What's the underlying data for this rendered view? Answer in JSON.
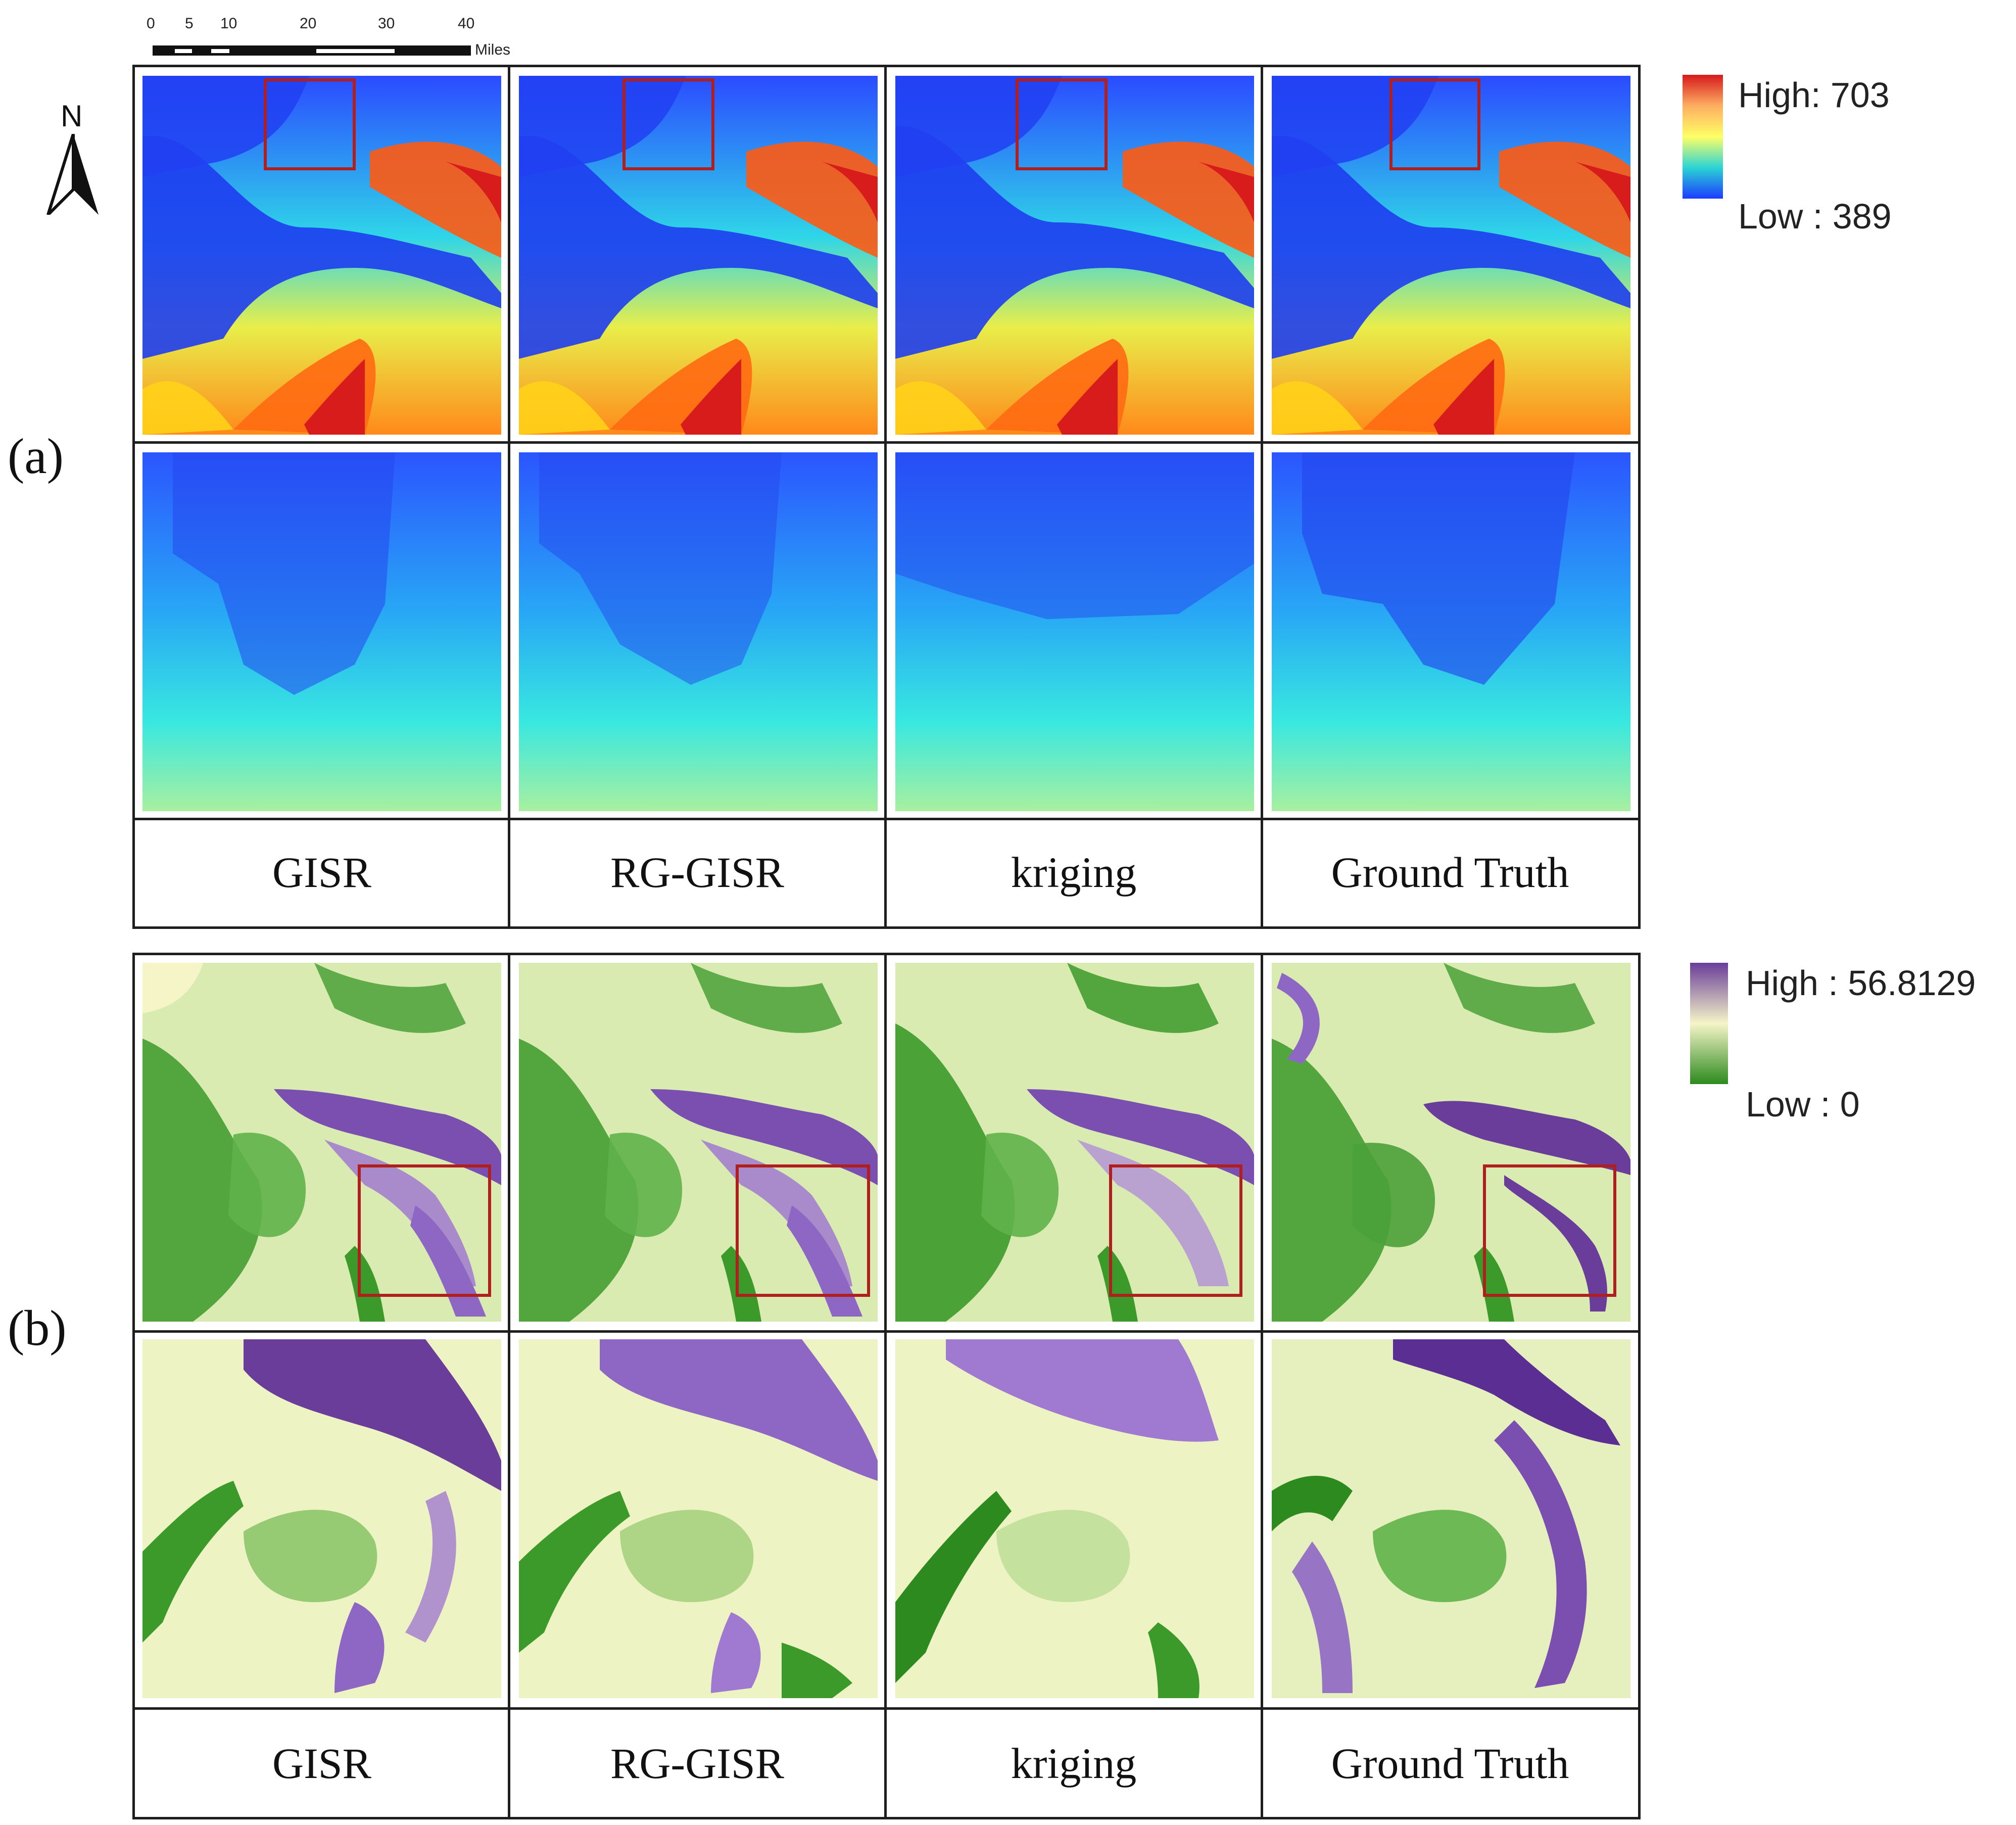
{
  "figure": {
    "panel_a": {
      "label": "(a)",
      "columns": [
        "GISR",
        "RG-GISR",
        "kriging",
        "Ground Truth"
      ],
      "legend": {
        "high": "High: 703",
        "low": "Low : 389",
        "colors": [
          "#d7191c",
          "#fdae61",
          "#ffff66",
          "#2bd4d4",
          "#1c3cff"
        ]
      }
    },
    "panel_b": {
      "label": "(b)",
      "columns": [
        "GISR",
        "RG-GISR",
        "kriging",
        "Ground Truth"
      ],
      "legend": {
        "high": "High : 56.8129",
        "low": "Low : 0",
        "colors": [
          "#6a3d9a",
          "#f5f5c8",
          "#2d8a1e"
        ]
      }
    },
    "scalebar": {
      "ticks": [
        "0",
        "5",
        "10",
        "20",
        "30",
        "40"
      ],
      "unit": "Miles"
    },
    "north_arrow": {
      "label": "N",
      "icon": "north-arrow-icon"
    },
    "highlight_color": "#b01e1e"
  }
}
